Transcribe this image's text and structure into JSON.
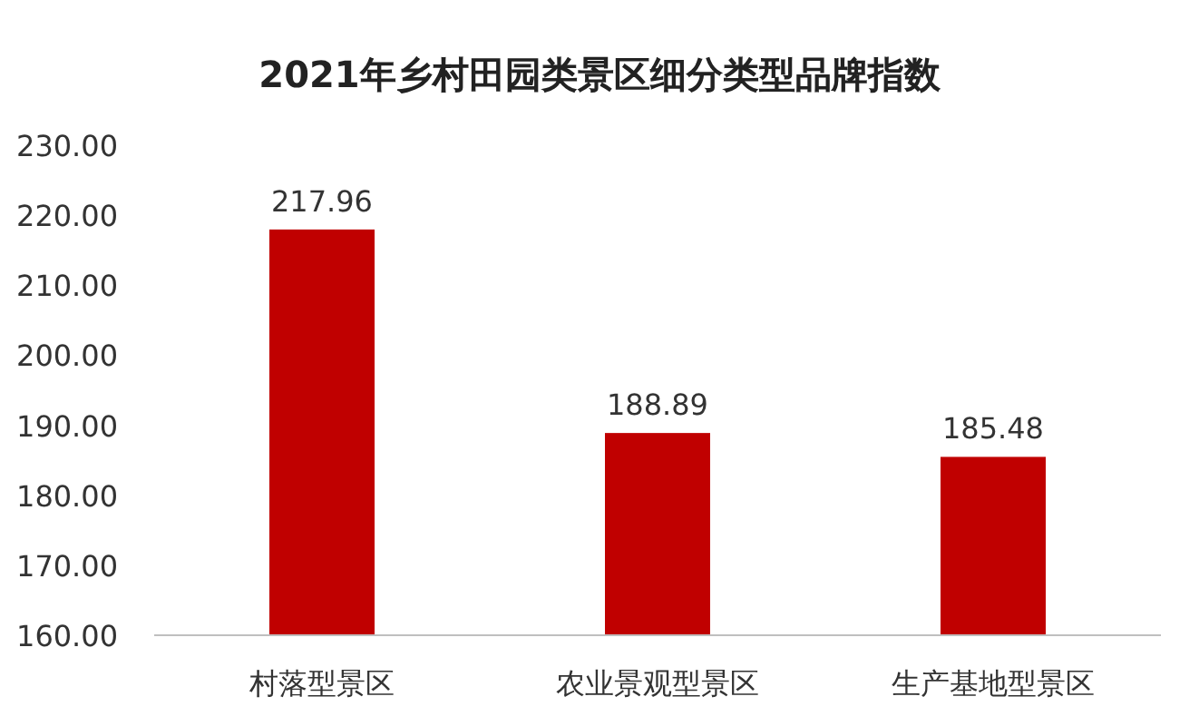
{
  "chart_data": {
    "type": "bar",
    "title": "2021年乡村田园类景区细分类型品牌指数",
    "categories": [
      "村落型景区",
      "农业景观型景区",
      "生产基地型景区"
    ],
    "values": [
      217.96,
      188.89,
      185.48
    ],
    "color": "#c00000",
    "ylim": [
      160,
      230
    ],
    "yticks": [
      {
        "value": 160,
        "label": "160.00"
      },
      {
        "value": 170,
        "label": "170.00"
      },
      {
        "value": 180,
        "label": "180.00"
      },
      {
        "value": 190,
        "label": "190.00"
      },
      {
        "value": 200,
        "label": "200.00"
      },
      {
        "value": 210,
        "label": "210.00"
      },
      {
        "value": 220,
        "label": "220.00"
      },
      {
        "value": 230,
        "label": "230.00"
      }
    ],
    "data_labels": true
  }
}
